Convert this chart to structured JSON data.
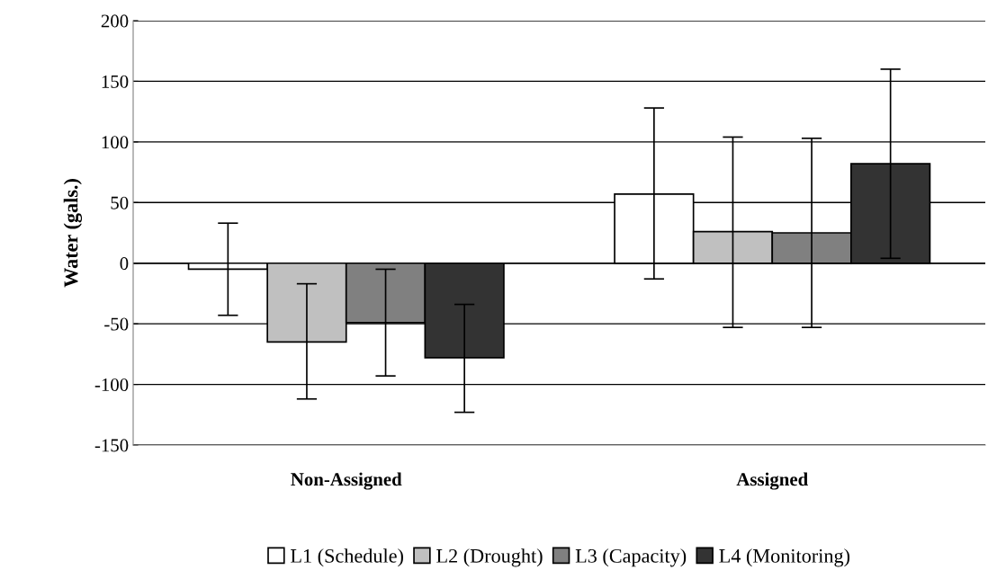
{
  "chart_data": {
    "type": "bar",
    "ylabel": "Water (gals.)",
    "categories": [
      "Non-Assigned",
      "Assigned"
    ],
    "series": [
      {
        "name": "L1 (Schedule)",
        "color": "#ffffff",
        "values": [
          -5,
          57
        ],
        "errors": [
          [
            -43,
            33
          ],
          [
            -13,
            128
          ]
        ]
      },
      {
        "name": "L2 (Drought)",
        "color": "#c0c0c0",
        "values": [
          -65,
          26
        ],
        "errors": [
          [
            -112,
            -17
          ],
          [
            -53,
            104
          ]
        ]
      },
      {
        "name": "L3 (Capacity)",
        "color": "#808080",
        "values": [
          -49,
          25
        ],
        "errors": [
          [
            -93,
            -5
          ],
          [
            -53,
            103
          ]
        ]
      },
      {
        "name": "L4 (Monitoring)",
        "color": "#333333",
        "values": [
          -78,
          82
        ],
        "errors": [
          [
            -123,
            -34
          ],
          [
            4,
            160
          ]
        ]
      }
    ],
    "ylim": [
      -150,
      200
    ],
    "yticks": [
      -150,
      -100,
      -50,
      0,
      50,
      100,
      150,
      200
    ],
    "grid": "y",
    "legend": "bottom"
  }
}
